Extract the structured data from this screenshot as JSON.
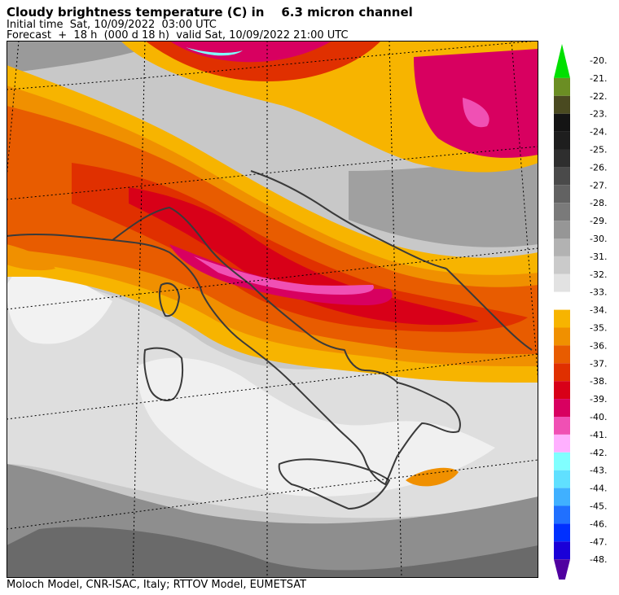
{
  "header": {
    "title": "Cloudy brightness temperature (C) in    6.3 micron channel",
    "initial_time": "Initial time  Sat, 10/09/2022  03:00 UTC",
    "forecast": "Forecast  +  18 h  (000 d 18 h)  valid Sat, 10/09/2022 21:00 UTC"
  },
  "footer": {
    "credits": "Moloch Model, CNR-ISAC, Italy; RTTOV Model, EUMETSAT"
  },
  "legend": {
    "labels": [
      "-20.",
      "-21.",
      "-22.",
      "-23.",
      "-24.",
      "-25.",
      "-26.",
      "-27.",
      "-28.",
      "-29.",
      "-30.",
      "-31.",
      "-32.",
      "-33.",
      "-34.",
      "-35.",
      "-36.",
      "-37.",
      "-38.",
      "-39.",
      "-40.",
      "-41.",
      "-42.",
      "-43.",
      "-44.",
      "-45.",
      "-46.",
      "-47.",
      "-48."
    ],
    "colors": [
      "#00e000",
      "#6b8e23",
      "#4a4a20",
      "#141414",
      "#1e1e1e",
      "#2e2e2e",
      "#4a4a4a",
      "#626262",
      "#7a7a7a",
      "#969696",
      "#b2b2b2",
      "#cacaca",
      "#e2e2e2",
      "#ffffff",
      "#f7b400",
      "#f09000",
      "#e85c00",
      "#e03000",
      "#d80018",
      "#d80060",
      "#f050b4",
      "#ffb0ff",
      "#80ffff",
      "#60e0ff",
      "#40b0ff",
      "#2070ff",
      "#0030ff",
      "#1a00d8",
      "#5000a0"
    ]
  }
}
